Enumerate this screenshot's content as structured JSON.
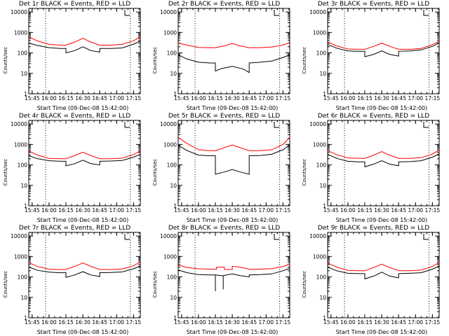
{
  "chart_data": [
    {
      "type": "line",
      "title": "Det 1r BLACK = Events, RED = LLD",
      "xlabel": "Start Time (09-Dec-08 15:42:00)",
      "ylabel": "Counts/sec",
      "xlim": [
        "15:42",
        "17:21"
      ],
      "ylim": [
        1,
        15000
      ],
      "yscale": "log",
      "x_ticks": [
        "15:45",
        "16:00",
        "16:15",
        "16:30",
        "16:45",
        "17:00",
        "17:15"
      ],
      "y_ticks": [
        "1",
        "10",
        "100",
        "1000",
        "10000"
      ],
      "vlines_dotted": [
        "15:57",
        "17:12"
      ],
      "legend_glyph": "step",
      "series": [
        {
          "color": "#000000",
          "x": [
            "15:42",
            "15:50",
            "16:00",
            "16:10",
            "16:15",
            "16:15",
            "16:23",
            "16:30",
            "16:37",
            "16:45",
            "16:45",
            "16:55",
            "17:05",
            "17:15",
            "17:21"
          ],
          "y": [
            300,
            230,
            180,
            165,
            165,
            100,
            130,
            200,
            130,
            110,
            165,
            165,
            175,
            270,
            380
          ]
        },
        {
          "color": "#ff0000",
          "x": [
            "15:42",
            "15:50",
            "16:00",
            "16:10",
            "16:15",
            "16:23",
            "16:30",
            "16:37",
            "16:45",
            "16:55",
            "17:05",
            "17:15",
            "17:21"
          ],
          "y": [
            600,
            380,
            260,
            240,
            240,
            340,
            520,
            340,
            240,
            240,
            260,
            390,
            620
          ]
        }
      ]
    },
    {
      "type": "line",
      "title": "Det 2r BLACK = Events, RED = LLD",
      "xlabel": "Start Time (09-Dec-08 15:42:00)",
      "ylabel": "Counts/sec",
      "xlim": [
        "15:42",
        "17:21"
      ],
      "ylim": [
        1,
        15000
      ],
      "yscale": "log",
      "x_ticks": [
        "15:45",
        "16:00",
        "16:15",
        "16:30",
        "16:45",
        "17:00",
        "17:15"
      ],
      "y_ticks": [
        "1",
        "10",
        "100",
        "1000",
        "10000"
      ],
      "vlines_dotted": [
        "15:57",
        "17:12"
      ],
      "legend_glyph": "step",
      "series": [
        {
          "color": "#000000",
          "x": [
            "15:42",
            "15:50",
            "16:00",
            "16:10",
            "16:15",
            "16:15",
            "16:20",
            "16:30",
            "16:40",
            "16:45",
            "16:45",
            "16:55",
            "17:05",
            "17:15",
            "17:21"
          ],
          "y": [
            80,
            50,
            35,
            32,
            32,
            13,
            17,
            22,
            16,
            11,
            32,
            35,
            40,
            60,
            80
          ]
        },
        {
          "color": "#ff0000",
          "x": [
            "15:42",
            "15:50",
            "16:00",
            "16:10",
            "16:15",
            "16:23",
            "16:30",
            "16:37",
            "16:45",
            "16:55",
            "17:05",
            "17:15",
            "17:21"
          ],
          "y": [
            300,
            240,
            185,
            180,
            180,
            220,
            290,
            220,
            180,
            180,
            195,
            240,
            320
          ]
        }
      ]
    },
    {
      "type": "line",
      "title": "Det 3r BLACK = Events, RED = LLD",
      "xlabel": "Start Time (09-Dec-08 15:42:00)",
      "ylabel": "Counts/sec",
      "xlim": [
        "15:42",
        "17:21"
      ],
      "ylim": [
        1,
        15000
      ],
      "yscale": "log",
      "x_ticks": [
        "15:45",
        "16:00",
        "16:15",
        "16:30",
        "16:45",
        "17:00",
        "17:15"
      ],
      "y_ticks": [
        "1",
        "10",
        "100",
        "1000",
        "10000"
      ],
      "vlines_dotted": [
        "15:57",
        "17:12"
      ],
      "legend_glyph": "step",
      "series": [
        {
          "color": "#000000",
          "x": [
            "15:42",
            "15:50",
            "16:00",
            "16:10",
            "16:15",
            "16:15",
            "16:23",
            "16:30",
            "16:37",
            "16:45",
            "16:45",
            "16:55",
            "17:05",
            "17:15",
            "17:21"
          ],
          "y": [
            260,
            170,
            125,
            120,
            120,
            65,
            85,
            125,
            85,
            70,
            120,
            125,
            140,
            210,
            300
          ]
        },
        {
          "color": "#ff0000",
          "x": [
            "15:42",
            "15:50",
            "16:00",
            "16:10",
            "16:15",
            "16:23",
            "16:30",
            "16:37",
            "16:45",
            "16:55",
            "17:05",
            "17:15",
            "17:21"
          ],
          "y": [
            340,
            220,
            155,
            150,
            150,
            210,
            300,
            210,
            150,
            150,
            165,
            250,
            370
          ]
        }
      ]
    },
    {
      "type": "line",
      "title": "Det 4r BLACK = Events, RED = LLD",
      "xlabel": "Start Time (09-Dec-08 15:42:00)",
      "ylabel": "Counts/sec",
      "xlim": [
        "15:42",
        "17:21"
      ],
      "ylim": [
        1,
        15000
      ],
      "yscale": "log",
      "x_ticks": [
        "15:45",
        "16:00",
        "16:15",
        "16:30",
        "16:45",
        "17:00",
        "17:15"
      ],
      "y_ticks": [
        "1",
        "10",
        "100",
        "1000",
        "10000"
      ],
      "vlines_dotted": [
        "15:57",
        "17:12"
      ],
      "legend_glyph": "step",
      "series": [
        {
          "color": "#000000",
          "x": [
            "15:42",
            "15:50",
            "16:00",
            "16:10",
            "16:15",
            "16:15",
            "16:23",
            "16:30",
            "16:37",
            "16:45",
            "16:45",
            "16:55",
            "17:05",
            "17:15",
            "17:21"
          ],
          "y": [
            280,
            200,
            160,
            150,
            150,
            90,
            115,
            170,
            115,
            100,
            150,
            155,
            165,
            240,
            330
          ]
        },
        {
          "color": "#ff0000",
          "x": [
            "15:42",
            "15:50",
            "16:00",
            "16:10",
            "16:15",
            "16:23",
            "16:30",
            "16:37",
            "16:45",
            "16:55",
            "17:05",
            "17:15",
            "17:21"
          ],
          "y": [
            480,
            300,
            210,
            200,
            200,
            290,
            420,
            290,
            200,
            200,
            215,
            320,
            480
          ]
        }
      ]
    },
    {
      "type": "line",
      "title": "Det 5r BLACK = Events, RED = LLD",
      "xlabel": "Start Time (09-Dec-08 15:42:00)",
      "ylabel": "Counts/sec",
      "xlim": [
        "15:42",
        "17:21"
      ],
      "ylim": [
        1,
        15000
      ],
      "yscale": "log",
      "x_ticks": [
        "15:45",
        "16:00",
        "16:15",
        "16:30",
        "16:45",
        "17:00",
        "17:15"
      ],
      "y_ticks": [
        "1",
        "10",
        "100",
        "1000",
        "10000"
      ],
      "vlines_dotted": [
        "15:57",
        "17:12"
      ],
      "legend_glyph": "step",
      "series": [
        {
          "color": "#000000",
          "x": [
            "15:42",
            "15:50",
            "16:00",
            "16:10",
            "16:15",
            "16:15",
            "16:23",
            "16:30",
            "16:37",
            "16:45",
            "16:45",
            "16:55",
            "17:05",
            "17:15",
            "17:21"
          ],
          "y": [
            900,
            500,
            300,
            280,
            280,
            35,
            45,
            60,
            45,
            35,
            280,
            290,
            330,
            550,
            950
          ]
        },
        {
          "color": "#ff0000",
          "x": [
            "15:42",
            "15:50",
            "16:00",
            "16:10",
            "16:15",
            "16:23",
            "16:30",
            "16:37",
            "16:45",
            "16:55",
            "17:05",
            "17:15",
            "17:21"
          ],
          "y": [
            2200,
            1100,
            550,
            500,
            500,
            700,
            950,
            700,
            500,
            500,
            550,
            1000,
            2200
          ]
        }
      ]
    },
    {
      "type": "line",
      "title": "Det 6r BLACK = Events, RED = LLD",
      "xlabel": "Start Time (09-Dec-08 15:42:00)",
      "ylabel": "Counts/sec",
      "xlim": [
        "15:42",
        "17:21"
      ],
      "ylim": [
        1,
        15000
      ],
      "yscale": "log",
      "x_ticks": [
        "15:45",
        "16:00",
        "16:15",
        "16:30",
        "16:45",
        "17:00",
        "17:15"
      ],
      "y_ticks": [
        "1",
        "10",
        "100",
        "1000",
        "10000"
      ],
      "vlines_dotted": [
        "15:57",
        "17:12"
      ],
      "legend_glyph": "step",
      "series": [
        {
          "color": "#000000",
          "x": [
            "15:42",
            "15:50",
            "16:00",
            "16:10",
            "16:15",
            "16:15",
            "16:23",
            "16:30",
            "16:37",
            "16:45",
            "16:45",
            "16:55",
            "17:05",
            "17:15",
            "17:21"
          ],
          "y": [
            330,
            210,
            150,
            140,
            140,
            80,
            110,
            160,
            110,
            90,
            140,
            145,
            160,
            240,
            340
          ]
        },
        {
          "color": "#ff0000",
          "x": [
            "15:42",
            "15:50",
            "16:00",
            "16:10",
            "16:15",
            "16:23",
            "16:30",
            "16:37",
            "16:45",
            "16:55",
            "17:05",
            "17:15",
            "17:21"
          ],
          "y": [
            500,
            320,
            220,
            210,
            210,
            300,
            450,
            300,
            210,
            210,
            225,
            340,
            520
          ]
        }
      ]
    },
    {
      "type": "line",
      "title": "Det 7r BLACK = Events, RED = LLD",
      "xlabel": "Start Time (09-Dec-08 15:42:00)",
      "ylabel": "Counts/sec",
      "xlim": [
        "15:42",
        "17:21"
      ],
      "ylim": [
        1,
        15000
      ],
      "yscale": "log",
      "x_ticks": [
        "15:45",
        "16:00",
        "16:15",
        "16:30",
        "16:45",
        "17:00",
        "17:15"
      ],
      "y_ticks": [
        "1",
        "10",
        "100",
        "1000",
        "10000"
      ],
      "vlines_dotted": [
        "15:57",
        "17:12"
      ],
      "legend_glyph": "step",
      "series": [
        {
          "color": "#000000",
          "x": [
            "15:42",
            "15:50",
            "16:00",
            "16:10",
            "16:15",
            "16:15",
            "16:23",
            "16:30",
            "16:37",
            "16:45",
            "16:45",
            "16:55",
            "17:05",
            "17:15",
            "17:21"
          ],
          "y": [
            300,
            210,
            170,
            160,
            160,
            95,
            125,
            180,
            125,
            105,
            160,
            165,
            175,
            250,
            340
          ]
        },
        {
          "color": "#ff0000",
          "x": [
            "15:42",
            "15:50",
            "16:00",
            "16:10",
            "16:15",
            "16:23",
            "16:30",
            "16:37",
            "16:45",
            "16:55",
            "17:05",
            "17:15",
            "17:21"
          ],
          "y": [
            500,
            320,
            240,
            230,
            230,
            330,
            480,
            330,
            230,
            230,
            245,
            350,
            540
          ]
        }
      ]
    },
    {
      "type": "line",
      "title": "Det 8r BLACK = Events, RED = LLD",
      "xlabel": "Start Time (09-Dec-08 15:42:00)",
      "ylabel": "Counts/sec",
      "xlim": [
        "15:42",
        "17:21"
      ],
      "ylim": [
        1,
        15000
      ],
      "yscale": "log",
      "x_ticks": [
        "15:45",
        "16:00",
        "16:15",
        "16:30",
        "16:45",
        "17:00",
        "17:15"
      ],
      "y_ticks": [
        "1",
        "10",
        "100",
        "1000",
        "10000"
      ],
      "vlines_dotted": [
        "15:57",
        "17:12"
      ],
      "legend_glyph": "step",
      "series": [
        {
          "color": "#000000",
          "x": [
            "15:42",
            "15:50",
            "16:00",
            "16:10",
            "16:15",
            "16:15",
            "16:15",
            "16:15",
            "16:20",
            "16:22",
            "16:22",
            "16:22",
            "16:30",
            "16:37",
            "16:45",
            "16:45",
            "16:55",
            "17:05",
            "17:15",
            "17:21"
          ],
          "y": [
            220,
            160,
            130,
            125,
            125,
            20,
            20,
            125,
            115,
            115,
            25,
            115,
            140,
            115,
            100,
            125,
            130,
            140,
            200,
            260
          ]
        },
        {
          "color": "#ff0000",
          "x": [
            "15:42",
            "15:50",
            "16:00",
            "16:10",
            "16:16",
            "16:16",
            "16:23",
            "16:23",
            "16:30",
            "16:30",
            "16:37",
            "16:45",
            "16:55",
            "17:05",
            "17:15",
            "17:21"
          ],
          "y": [
            380,
            290,
            250,
            240,
            240,
            300,
            300,
            230,
            230,
            330,
            300,
            240,
            240,
            255,
            320,
            420
          ]
        }
      ]
    },
    {
      "type": "line",
      "title": "Det 9r BLACK = Events, RED = LLD",
      "xlabel": "Start Time (09-Dec-08 15:42:00)",
      "ylabel": "Counts/sec",
      "xlim": [
        "15:42",
        "17:21"
      ],
      "ylim": [
        1,
        15000
      ],
      "yscale": "log",
      "x_ticks": [
        "15:45",
        "16:00",
        "16:15",
        "16:30",
        "16:45",
        "17:00",
        "17:15"
      ],
      "y_ticks": [
        "1",
        "10",
        "100",
        "1000",
        "10000"
      ],
      "vlines_dotted": [
        "15:57",
        "17:12"
      ],
      "legend_glyph": "step",
      "series": [
        {
          "color": "#000000",
          "x": [
            "15:42",
            "15:50",
            "16:00",
            "16:10",
            "16:15",
            "16:15",
            "16:23",
            "16:30",
            "16:37",
            "16:45",
            "16:45",
            "16:55",
            "17:05",
            "17:15",
            "17:21"
          ],
          "y": [
            300,
            200,
            150,
            145,
            145,
            80,
            110,
            170,
            110,
            90,
            145,
            150,
            160,
            240,
            340
          ]
        },
        {
          "color": "#ff0000",
          "x": [
            "15:42",
            "15:50",
            "16:00",
            "16:10",
            "16:15",
            "16:23",
            "16:30",
            "16:37",
            "16:45",
            "16:55",
            "17:05",
            "17:15",
            "17:21"
          ],
          "y": [
            480,
            300,
            210,
            200,
            200,
            290,
            420,
            290,
            200,
            200,
            215,
            330,
            500
          ]
        }
      ]
    }
  ]
}
